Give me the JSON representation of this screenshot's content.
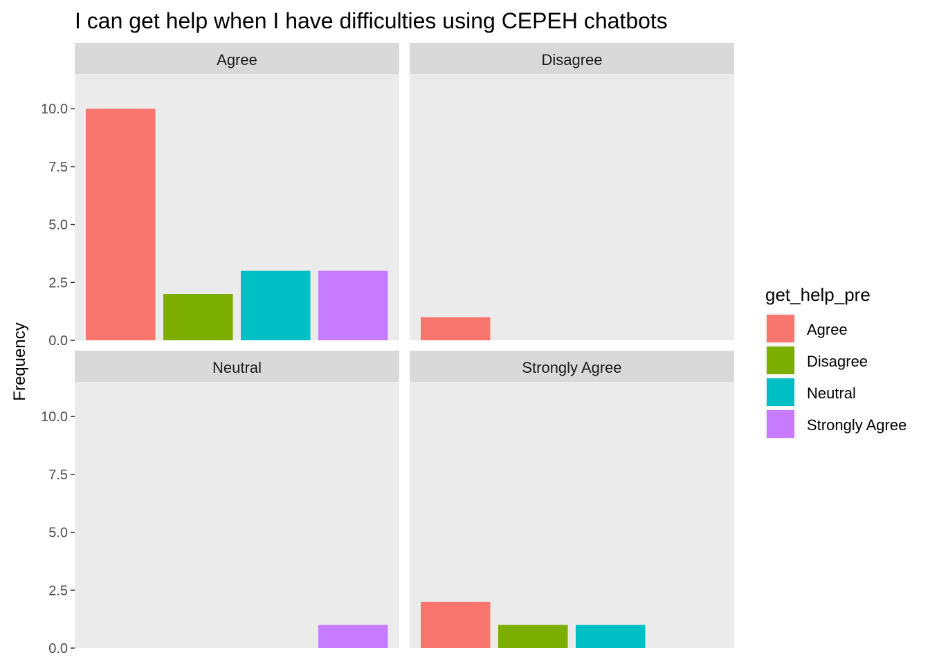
{
  "chart_data": {
    "type": "bar",
    "title": "I can get help when I have difficulties using CEPEH chatbots",
    "xlabel": "",
    "ylabel": "Frequency",
    "ylim": [
      0,
      11.5
    ],
    "yticks": [
      "0.0",
      "2.5",
      "5.0",
      "7.5",
      "10.0"
    ],
    "ytick_values": [
      0,
      2.5,
      5,
      7.5,
      10
    ],
    "categories": [
      "Agree",
      "Disagree",
      "Neutral",
      "Strongly Agree"
    ],
    "grid": false,
    "legend": {
      "title": "get_help_pre",
      "placement": "right",
      "items": [
        {
          "label": "Agree",
          "color": "#F8766D"
        },
        {
          "label": "Disagree",
          "color": "#7CAE00"
        },
        {
          "label": "Neutral",
          "color": "#00BFC4"
        },
        {
          "label": "Strongly Agree",
          "color": "#C77CFF"
        }
      ]
    },
    "panels": [
      {
        "facet": "Agree",
        "values": [
          10,
          2,
          3,
          3
        ]
      },
      {
        "facet": "Disagree",
        "values": [
          1,
          0,
          0,
          0
        ]
      },
      {
        "facet": "Neutral",
        "values": [
          0,
          0,
          0,
          1
        ]
      },
      {
        "facet": "Strongly Agree",
        "values": [
          2,
          1,
          1,
          0
        ]
      }
    ]
  }
}
